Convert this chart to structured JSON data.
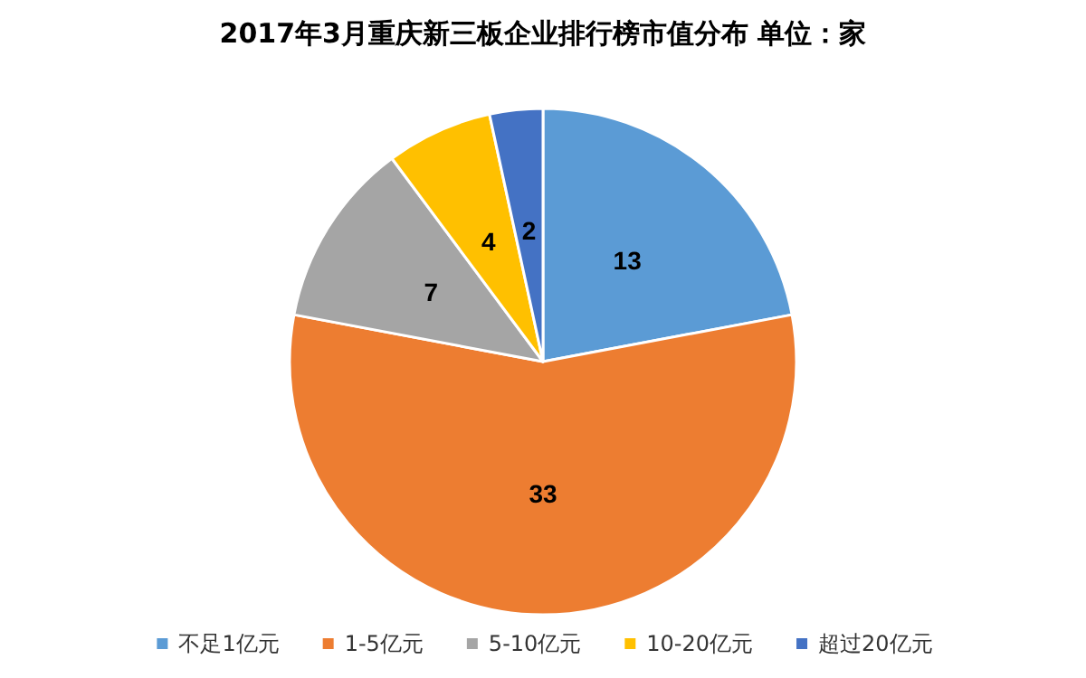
{
  "chart_data": {
    "type": "pie",
    "title": "2017年3月重庆新三板企业排行榜市值分布 单位：家",
    "categories": [
      "不足1亿元",
      "1-5亿元",
      "5-10亿元",
      "10-20亿元",
      "超过20亿元"
    ],
    "values": [
      13,
      33,
      7,
      4,
      2
    ],
    "colors": [
      "#5b9bd5",
      "#ed7d31",
      "#a5a5a5",
      "#ffc000",
      "#4472c4"
    ],
    "data_labels": true,
    "legend": "bottom"
  }
}
